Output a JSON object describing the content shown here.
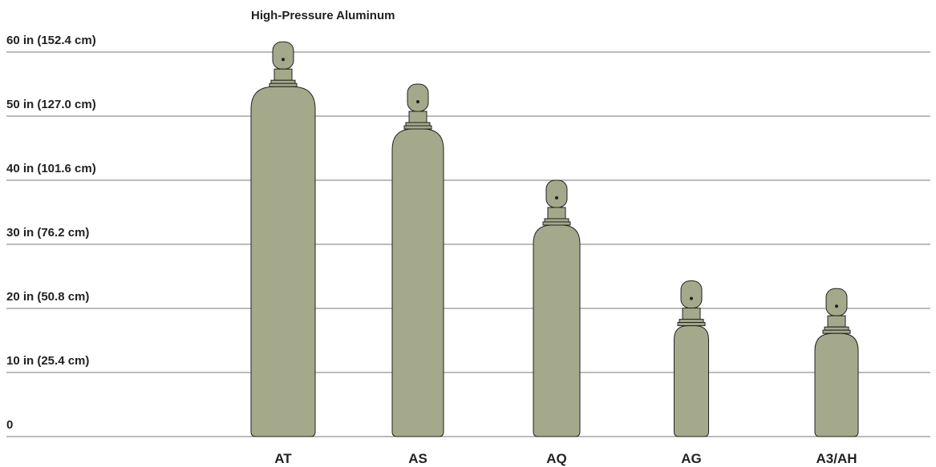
{
  "chart_data": {
    "type": "cylinder",
    "title": "High-Pressure Aluminum",
    "categories": [
      "AT",
      "AS",
      "AQ",
      "AG",
      "A3/AH"
    ],
    "values": [
      61.6,
      55,
      40,
      24.3,
      23.1
    ],
    "color": "#a3a98a",
    "ylim": [
      0,
      60
    ],
    "yticks": [
      0,
      {
        "value": 10,
        "label": "10 in (25.4 cm)"
      },
      {
        "value": 20,
        "label": "20 in (50.8 cm)"
      },
      {
        "value": 30,
        "label": "30 in (76.2 cm)"
      },
      {
        "value": 40,
        "label": "40 in (101.6 cm)"
      },
      {
        "value": 50,
        "label": "50 in (127.0 cm)"
      },
      {
        "value": 60,
        "label": "60 in (152.4 cm)"
      }
    ],
    "grid": true
  }
}
